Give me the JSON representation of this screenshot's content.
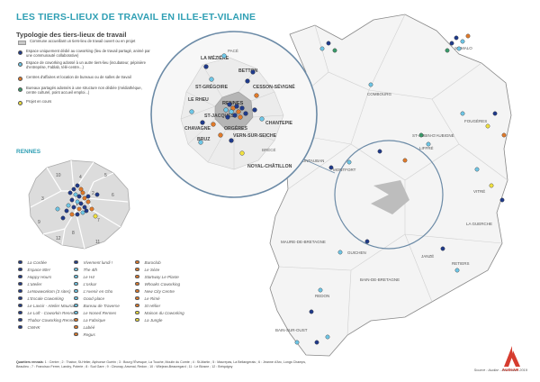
{
  "title": "LES TIERS-LIEUX DE TRAVAIL EN ILLE-ET-VILAINE",
  "legend": {
    "title": "Typologie des tiers-lieux de travail",
    "items": [
      {
        "label": "Commune accueillant un tiers-lieu de travail ouvert ou en projet",
        "color": "#c8c8c8",
        "shape": "square"
      },
      {
        "label": "Espace uniquement dédié au coworking (lieu de travail partagé, animé par une communauté collaborative)",
        "color": "#1f3a8a",
        "shape": "dot"
      },
      {
        "label": "Espace de coworking adossé à un autre tiers-lieu (incubateur, pépinière d'entreprise, Fablab, télé-centre...)",
        "color": "#6ec6e6",
        "shape": "dot"
      },
      {
        "label": "Centres d'affaires et location de bureaux ou de salles de travail",
        "color": "#e07a2a",
        "shape": "dot"
      },
      {
        "label": "Bureaux partagés adossés à une structure non dédiée (médiathèque, centre culturel, point accueil emploi...)",
        "color": "#3a9a6a",
        "shape": "dot"
      },
      {
        "label": "Projet en cours",
        "color": "#f0e040",
        "shape": "dot"
      }
    ]
  },
  "rennes_title": "RENNES",
  "rennes_list": {
    "col1": [
      {
        "name": "La Cordée",
        "color": "#1f3a8a"
      },
      {
        "name": "Espace 80H",
        "color": "#1f3a8a"
      },
      {
        "name": "Happy Hours",
        "color": "#1f3a8a"
      },
      {
        "name": "L'atelier",
        "color": "#1f3a8a"
      },
      {
        "name": "LeNowworkom (3 sites)",
        "color": "#1f3a8a"
      },
      {
        "name": "L'Escale Coworking",
        "color": "#1f3a8a"
      },
      {
        "name": "Le Lavoir - Atelier Mauriac",
        "color": "#1f3a8a"
      },
      {
        "name": "Le Loft - Coworkin Rennes",
        "color": "#1f3a8a"
      },
      {
        "name": "Thabor Coworking Rennes",
        "color": "#1f3a8a"
      },
      {
        "name": "CWHK",
        "color": "#1f3a8a"
      }
    ],
    "col2": [
      {
        "name": "Vivement lundi !",
        "color": "#1f3a8a"
      },
      {
        "name": "The 4th",
        "color": "#6ec6e6"
      },
      {
        "name": "Le H4",
        "color": "#6ec6e6"
      },
      {
        "name": "L'oskar",
        "color": "#6ec6e6"
      },
      {
        "name": "L'Avenir en Gho",
        "color": "#6ec6e6"
      },
      {
        "name": "Good place",
        "color": "#6ec6e6"
      },
      {
        "name": "Bureau de Traverse",
        "color": "#6ec6e6"
      },
      {
        "name": "Le Nosed Rennes",
        "color": "#6ec6e6"
      },
      {
        "name": "La Fabrique",
        "color": "#e07a2a"
      },
      {
        "name": "Labéé",
        "color": "#e07a2a"
      },
      {
        "name": "Regus",
        "color": "#e07a2a"
      }
    ],
    "col3": [
      {
        "name": "Buroclub",
        "color": "#e07a2a"
      },
      {
        "name": "Le Sèze",
        "color": "#e07a2a"
      },
      {
        "name": "Startway Le Plaste",
        "color": "#e07a2a"
      },
      {
        "name": "Whoaks Coworking",
        "color": "#e07a2a"
      },
      {
        "name": "New City Centre",
        "color": "#e07a2a"
      },
      {
        "name": "Le Rimé",
        "color": "#e07a2a"
      },
      {
        "name": "St Hélier",
        "color": "#e07a2a"
      },
      {
        "name": "Maison du Coworking",
        "color": "#f0e040"
      },
      {
        "name": "La Jungle",
        "color": "#f0e040"
      }
    ]
  },
  "quartiers": {
    "label": "Quartiers rennais",
    "text": ": 1 : Centre ; 2 : Thabor, St-Hélier, Alphonse Guérin ; 3 : Bourg l'Évesque, La Touche, Moulin du Comte ; 4 : St-Martin ; 5 : Maurepas, La Bellangerais ; 6 : Jeanne d'Arc, Longs Champs, Beaulieu ; 7 : Francisco Ferrer, Landry, Poterie ; 8 : Sud Gare ; 9 : Cleunay, Arsenal, Redon ; 10 : Villejean-Beauregard ; 11 : Le Blosne ; 12 : Bréquigny"
  },
  "source": "Source : Audiar - Décembre 2019",
  "logo_text": "AUDIAR",
  "zoom_labels": [
    "LA MÉZIÈRE",
    "BETTON",
    "ST-GRÉGOIRE",
    "CESSON-SÉVIGNÉ",
    "LE RHEU",
    "RENNES",
    "ST-JACQUES",
    "CHANTEPIE",
    "CHAVAGNE",
    "BRUZ",
    "VERN-SUR-SEICHE",
    "ORGÈRES",
    "NOYAL-CHÂTILLON",
    "PACÉ",
    "BRÉCÉ"
  ],
  "rennes_districts": [
    "1",
    "2",
    "3",
    "4",
    "5",
    "6",
    "7",
    "8",
    "9",
    "10",
    "11",
    "12"
  ],
  "dept_labels": [
    "ST-MALO",
    "COMBOURG",
    "FOUGÈRES",
    "VITRÉ",
    "MONTAUBAN",
    "REDON",
    "BAIN-DE-BRETAGNE",
    "JANZÉ",
    "LIFFRÉ",
    "MONTFORT",
    "GUICHEN",
    "RETIERS",
    "ST-AUBIN-D'AUBIGNÉ",
    "BAIN-SUR-OUST",
    "LA GUERCHE",
    "MAURE-DE-BRETAGNE"
  ]
}
